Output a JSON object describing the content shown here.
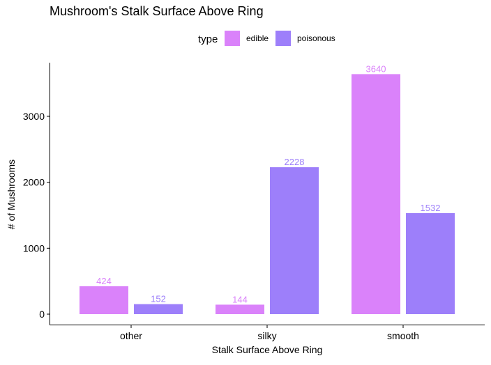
{
  "chart_data": {
    "type": "bar",
    "title": "Mushroom's Stalk Surface Above Ring",
    "xlabel": "Stalk Surface Above Ring",
    "ylabel": "# of Mushrooms",
    "categories": [
      "other",
      "silky",
      "smooth"
    ],
    "legend": {
      "title": "type",
      "placement": "top"
    },
    "series": [
      {
        "name": "edible",
        "color": "#da82fa",
        "values": [
          424,
          144,
          3640
        ],
        "labels": [
          "424",
          "144",
          "3640"
        ]
      },
      {
        "name": "poisonous",
        "color": "#9d7ffa",
        "values": [
          152,
          2228,
          1532
        ],
        "labels": [
          "152",
          "2228",
          "1532"
        ]
      }
    ],
    "yticks": [
      0,
      1000,
      2000,
      3000
    ],
    "ytick_labels": [
      "0",
      "1000",
      "2000",
      "3000"
    ],
    "ylim": [
      0,
      3822
    ],
    "grid": false
  }
}
